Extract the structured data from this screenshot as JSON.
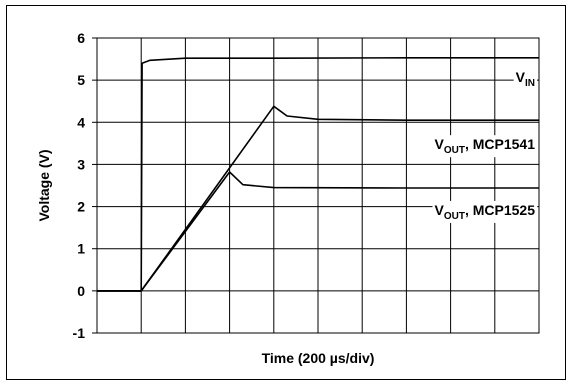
{
  "chart_data": {
    "type": "line",
    "title": "",
    "xlabel": "Time (200 µs/div)",
    "ylabel": "Voltage (V)",
    "ylim": [
      -1,
      6
    ],
    "yticks": [
      "6",
      "5",
      "4",
      "3",
      "2",
      "1",
      "0",
      "-1"
    ],
    "xdivisions": 10,
    "xlim": [
      0,
      10
    ],
    "grid": true,
    "series": [
      {
        "label_main": "V",
        "label_sub": "IN",
        "label_suffix": "",
        "points": [
          [
            0,
            0.0
          ],
          [
            1.0,
            0.0
          ],
          [
            1.02,
            5.4
          ],
          [
            1.2,
            5.47
          ],
          [
            2,
            5.52
          ],
          [
            4,
            5.52
          ],
          [
            7,
            5.53
          ],
          [
            10,
            5.53
          ]
        ]
      },
      {
        "label_main": "V",
        "label_sub": "OUT",
        "label_suffix": ", MCP1541",
        "points": [
          [
            0,
            0.0
          ],
          [
            1.0,
            0.0
          ],
          [
            4.0,
            4.38
          ],
          [
            4.3,
            4.15
          ],
          [
            5.0,
            4.07
          ],
          [
            7,
            4.05
          ],
          [
            10,
            4.05
          ]
        ]
      },
      {
        "label_main": "V",
        "label_sub": "OUT",
        "label_suffix": ", MCP1525",
        "points": [
          [
            0,
            0.0
          ],
          [
            1.0,
            0.0
          ],
          [
            3.0,
            2.82
          ],
          [
            3.3,
            2.52
          ],
          [
            4.0,
            2.45
          ],
          [
            7,
            2.44
          ],
          [
            10,
            2.44
          ]
        ]
      }
    ]
  }
}
